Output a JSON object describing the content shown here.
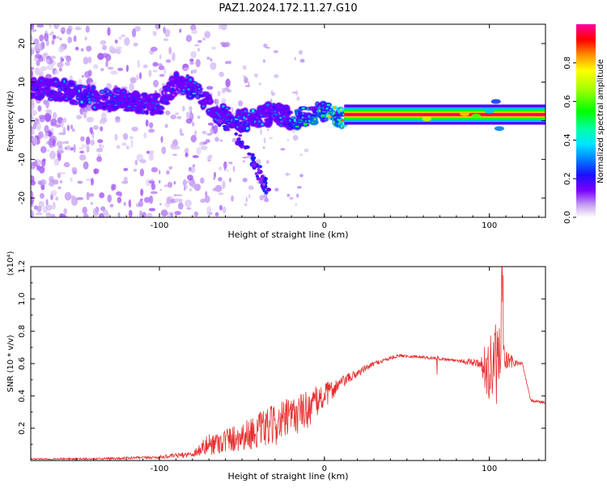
{
  "title": "PAZ1.2024.172.11.27.G10",
  "chart_data": [
    {
      "type": "heatmap",
      "xlabel": "Height of straight line (km)",
      "ylabel": "Frequency (Hz)",
      "xlim": [
        -178,
        134
      ],
      "ylim": [
        -25,
        25
      ],
      "xticks": [
        -100,
        0,
        100
      ],
      "yticks": [
        -20,
        -10,
        0,
        10,
        20
      ],
      "colorbar": {
        "label": "Normalized spectral amplitude",
        "range": [
          0,
          1
        ],
        "ticks": [
          "0.0",
          "0.2",
          "0.4",
          "0.6",
          "0.8"
        ]
      },
      "features": {
        "main_track": [
          {
            "x": -178,
            "y": 8.5,
            "amp": 0.2
          },
          {
            "x": -160,
            "y": 8.0,
            "amp": 0.3
          },
          {
            "x": -140,
            "y": 6.0,
            "amp": 0.35
          },
          {
            "x": -120,
            "y": 5.0,
            "amp": 0.3
          },
          {
            "x": -100,
            "y": 4.0,
            "amp": 0.25
          },
          {
            "x": -90,
            "y": 10.0,
            "amp": 0.2
          },
          {
            "x": -80,
            "y": 8.5,
            "amp": 0.35
          },
          {
            "x": -65,
            "y": 2.0,
            "amp": 0.3
          },
          {
            "x": -50,
            "y": 0.0,
            "amp": 0.35
          },
          {
            "x": -30,
            "y": 2.0,
            "amp": 0.3
          },
          {
            "x": -20,
            "y": 0.5,
            "amp": 0.45
          },
          {
            "x": -10,
            "y": 1.0,
            "amp": 0.5
          },
          {
            "x": 0,
            "y": 2.5,
            "amp": 0.6
          },
          {
            "x": 12,
            "y": 1.0,
            "amp": 0.95
          },
          {
            "x": 134,
            "y": 0.8,
            "amp": 0.95
          }
        ],
        "descending_branch": [
          {
            "x": -65,
            "y": 0
          },
          {
            "x": -50,
            "y": -6
          },
          {
            "x": -40,
            "y": -13
          },
          {
            "x": -35,
            "y": -19
          }
        ]
      }
    },
    {
      "type": "line",
      "xlabel": "Height of straight line (km)",
      "ylabel": "SNR (10 * v/v)",
      "yscale_label": "(x10⁴)",
      "xlim": [
        -178,
        134
      ],
      "ylim": [
        0,
        1.2
      ],
      "xticks": [
        -100,
        0,
        100
      ],
      "yticks": [
        0.2,
        0.4,
        0.6,
        0.8,
        1.0,
        1.2
      ],
      "series": [
        {
          "color": "#e83030",
          "x": [
            -178,
            -140,
            -100,
            -80,
            -70,
            -50,
            -30,
            -10,
            10,
            30,
            45,
            60,
            80,
            95,
            100,
            105,
            110,
            118,
            120,
            125,
            134
          ],
          "y": [
            0.01,
            0.01,
            0.02,
            0.04,
            0.1,
            0.15,
            0.22,
            0.32,
            0.48,
            0.6,
            0.65,
            0.64,
            0.62,
            0.6,
            0.55,
            0.6,
            0.62,
            0.6,
            0.6,
            0.37,
            0.36
          ],
          "noise": [
            0.005,
            0.006,
            0.01,
            0.02,
            0.07,
            0.09,
            0.13,
            0.12,
            0.04,
            0.015,
            0.01,
            0.01,
            0.01,
            0.03,
            0.28,
            0.25,
            0.08,
            0.01,
            0.01,
            0.01,
            0.01
          ]
        }
      ]
    }
  ]
}
